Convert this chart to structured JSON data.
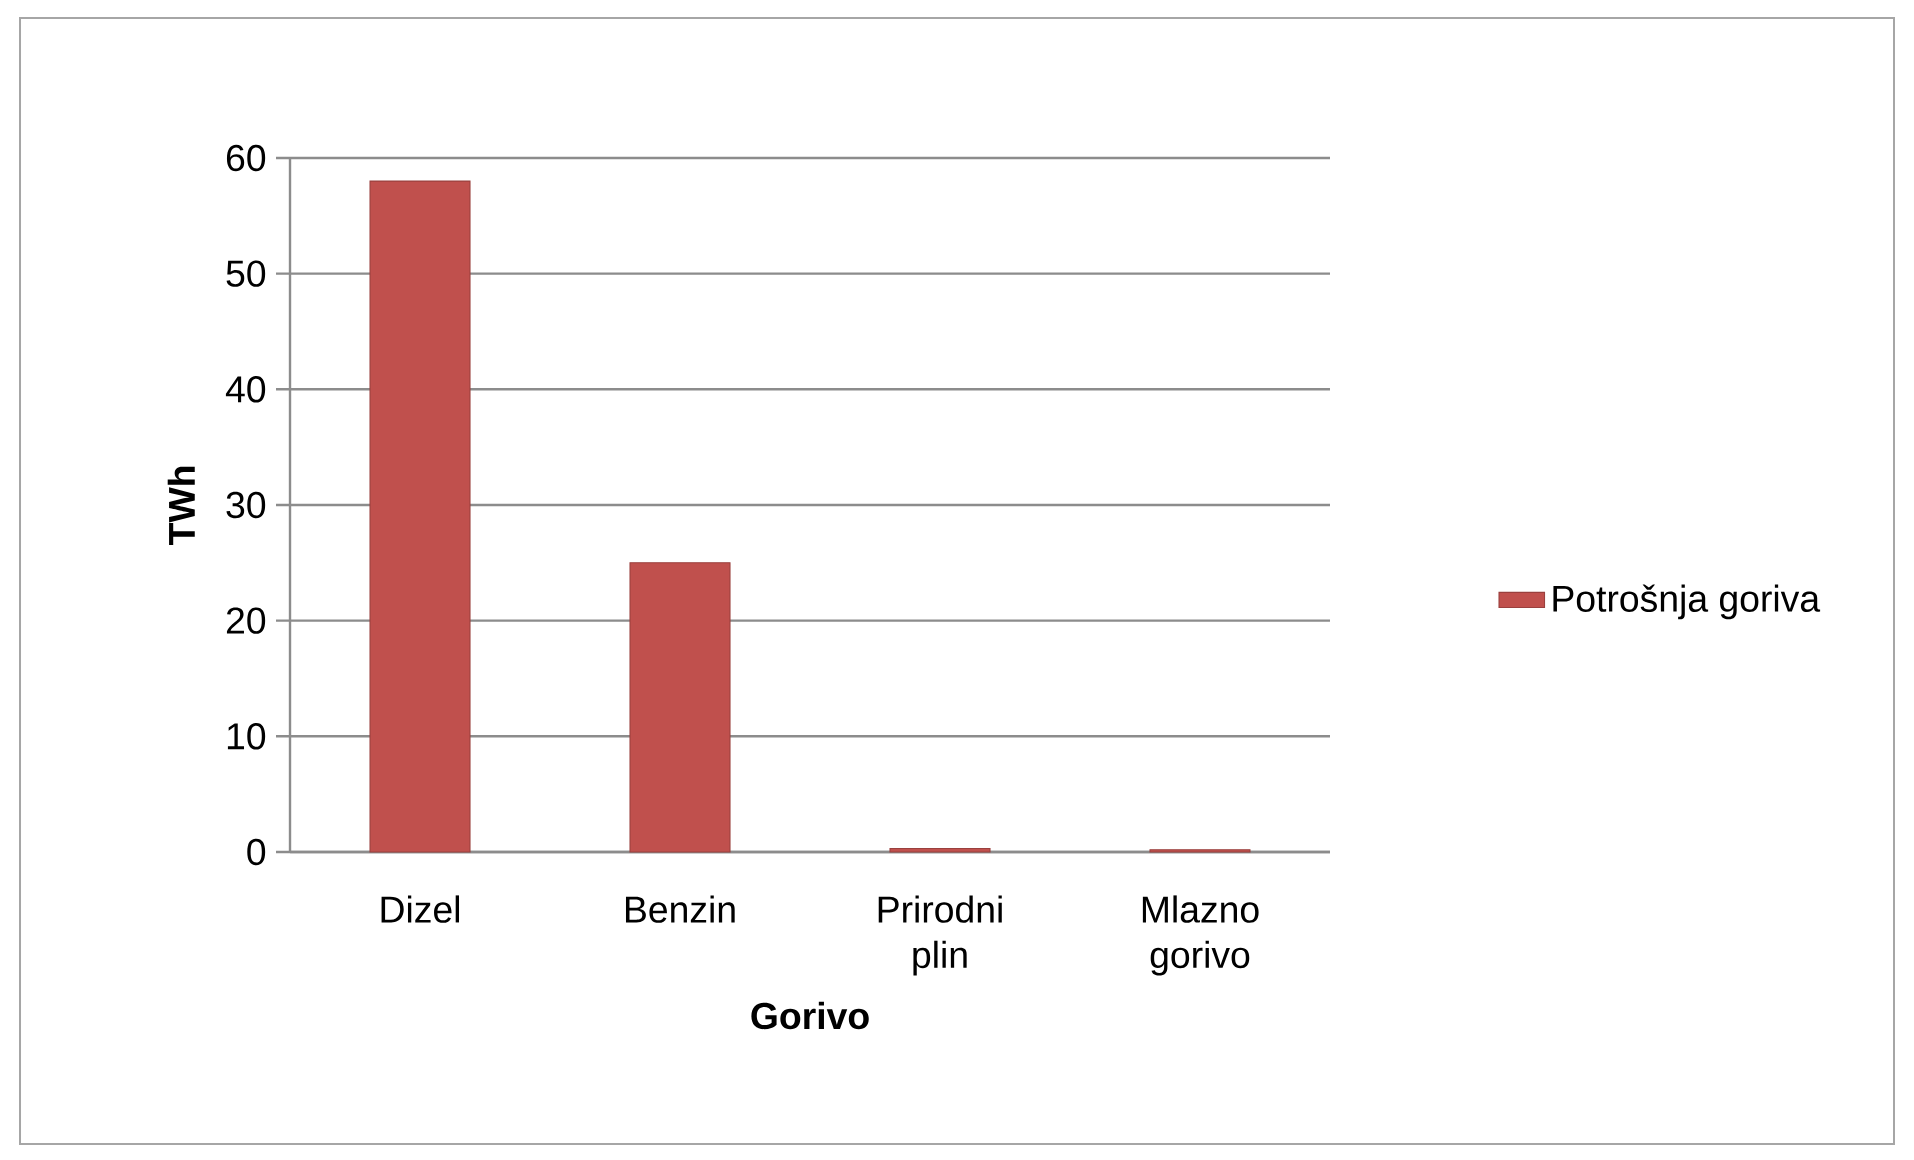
{
  "chart_data": {
    "type": "bar",
    "xlabel": "Gorivo",
    "ylabel": "TWh",
    "categories": [
      "Dizel",
      "Benzin",
      "Prirodni plin",
      "Mlazno gorivo"
    ],
    "series": [
      {
        "name": "Potrošnja goriva",
        "color": "#c0504d",
        "values": [
          58,
          25,
          0.3,
          0.2
        ]
      }
    ],
    "ylim": [
      0,
      60
    ],
    "yticks": [
      0,
      10,
      20,
      30,
      40,
      50,
      60
    ],
    "grid": "y",
    "legend": "right"
  }
}
